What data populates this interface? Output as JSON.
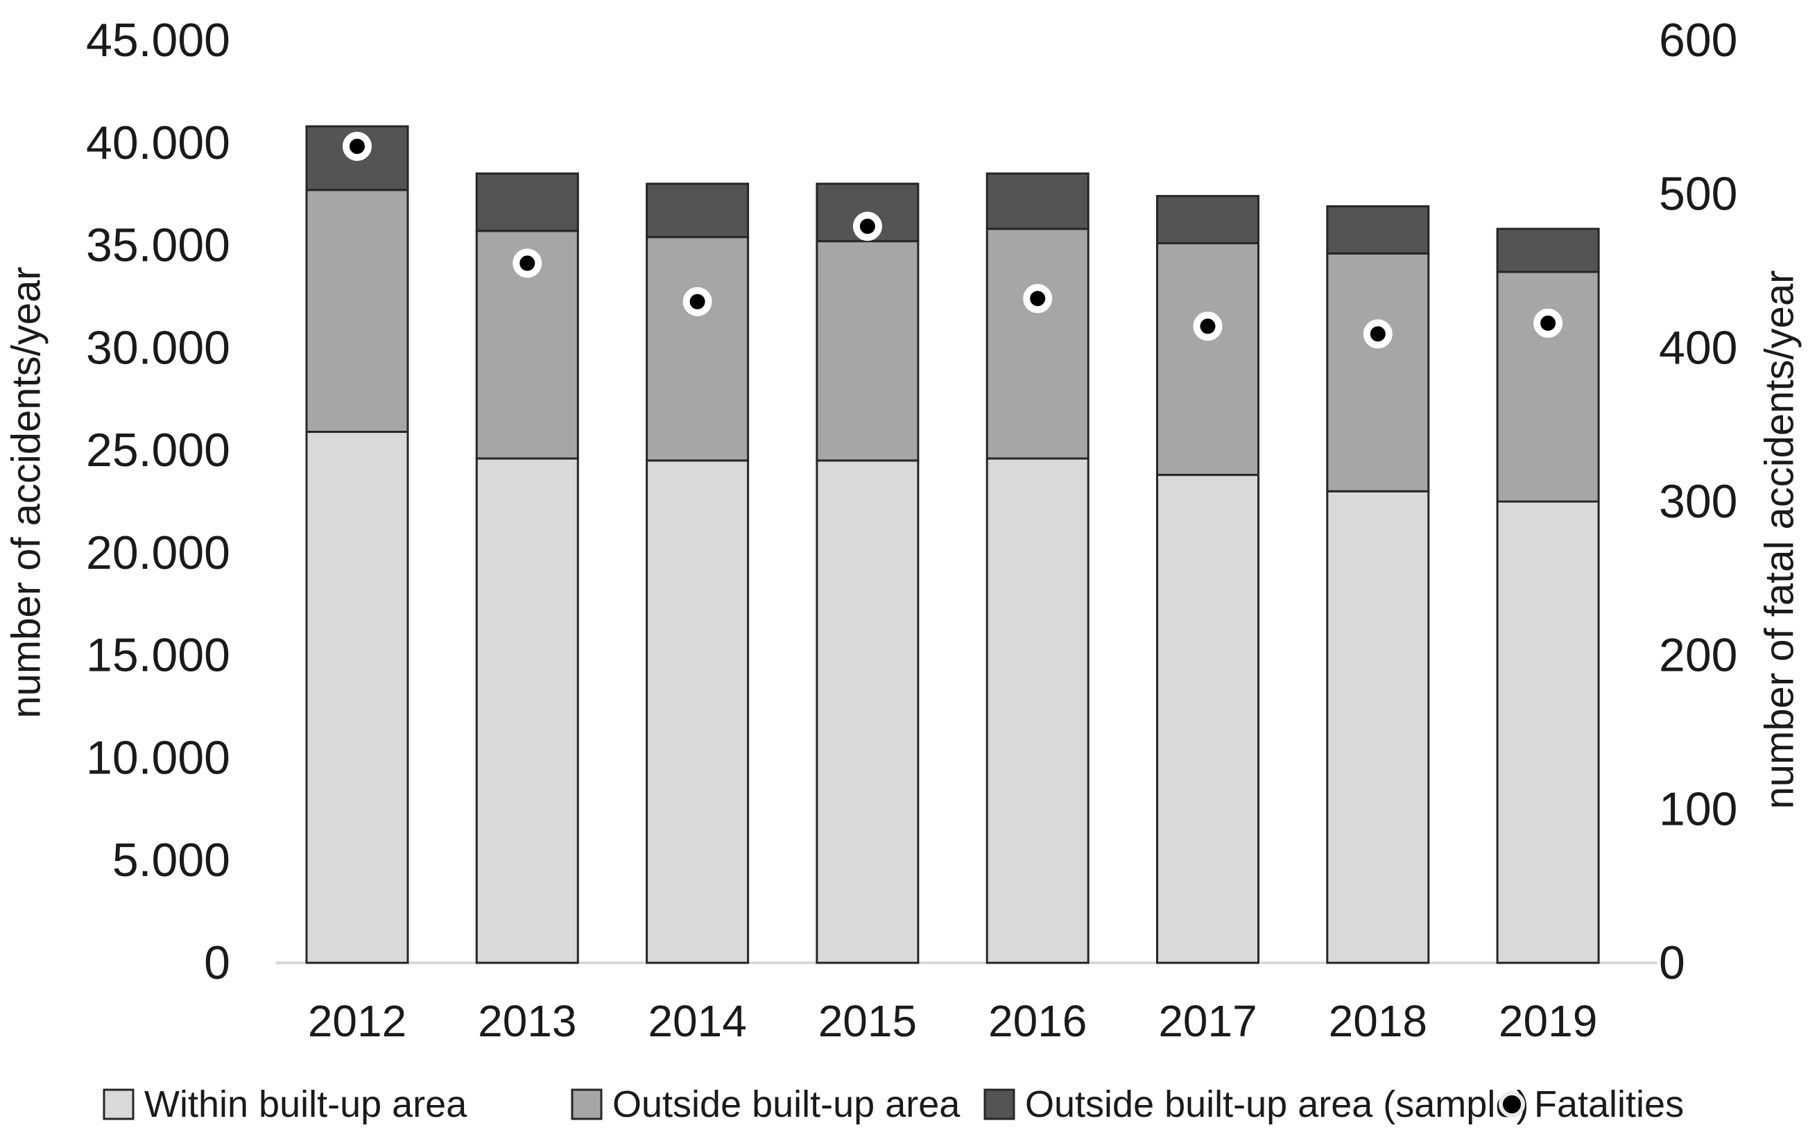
{
  "chart_data": {
    "type": "bar",
    "stacked": true,
    "background": "#ffffff",
    "categories": [
      "2012",
      "2013",
      "2014",
      "2015",
      "2016",
      "2017",
      "2018",
      "2019"
    ],
    "series": [
      {
        "name": "Within built-up area",
        "color": "#d9d9d9",
        "values": [
          25900,
          24600,
          24500,
          24500,
          24600,
          23800,
          23000,
          22500
        ]
      },
      {
        "name": "Outside built-up area",
        "color": "#a6a6a6",
        "values": [
          11800,
          11100,
          10900,
          10700,
          11200,
          11300,
          11600,
          11200
        ]
      },
      {
        "name": "Outside built-up area (sample)",
        "color": "#545454",
        "values": [
          3100,
          2800,
          2600,
          2800,
          2700,
          2300,
          2300,
          2100
        ]
      }
    ],
    "totals": [
      40800,
      38500,
      38000,
      38000,
      38500,
      37400,
      36900,
      35800
    ],
    "fatalities": {
      "name": "Fatalities",
      "axis": "right",
      "marker": "circle",
      "color": "#000000",
      "ring_color": "#ffffff",
      "values": [
        531,
        455,
        430,
        479,
        432,
        414,
        409,
        416
      ]
    },
    "left_axis": {
      "title": "number of accidents/year",
      "min": 0,
      "max": 45000,
      "step": 5000,
      "tick_format": "dot-thousands"
    },
    "right_axis": {
      "title": "number of fatal accidents/year",
      "min": 0,
      "max": 600,
      "step": 100,
      "tick_format": "plain"
    },
    "grid": false,
    "legend_position": "bottom",
    "baseline_color": "#d9d9d9",
    "bar_border_color": "#262626",
    "text_color": "#1a1a1a"
  }
}
